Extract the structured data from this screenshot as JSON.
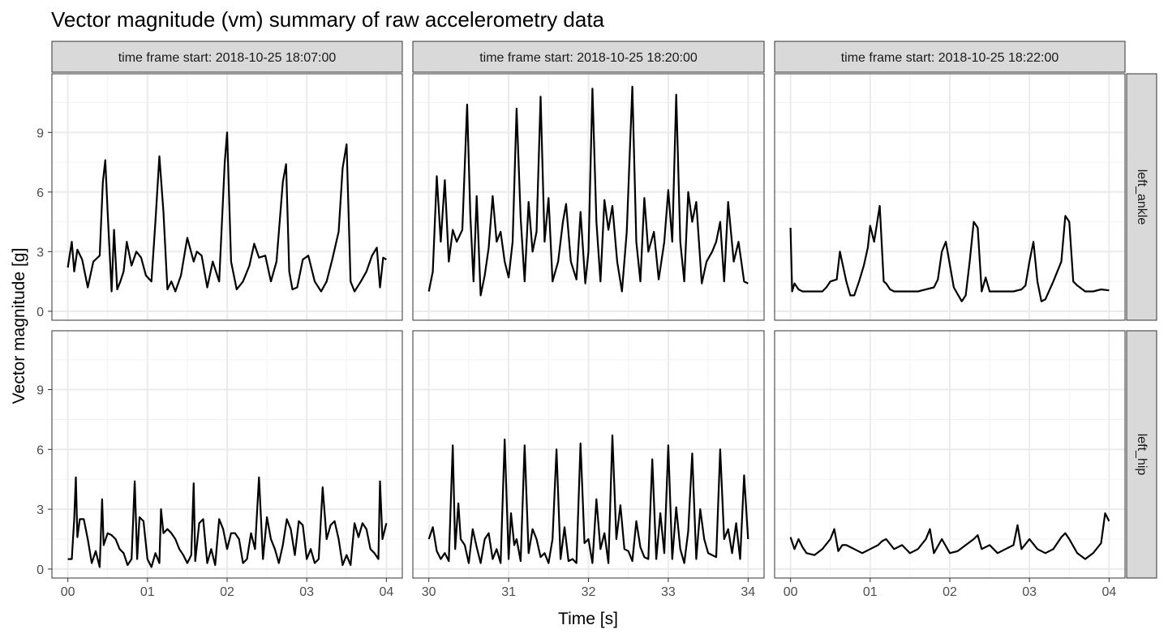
{
  "chart_data": {
    "type": "line",
    "title": "Vector magnitude (vm) summary of raw accelerometry data",
    "xlabel": "Time [s]",
    "ylabel": "Vector magnitude [g]",
    "ylim": [
      -0.45,
      11.95
    ],
    "y_ticks": [
      "0",
      "3",
      "6",
      "9"
    ],
    "y_tick_values": [
      0,
      3,
      6,
      9
    ],
    "grid": true,
    "line_color": "#000000",
    "strip_fill": "#d9d9d9",
    "columns": [
      {
        "strip": "time frame start: 2018-10-25 18:07:00",
        "xlim": [
          -0.2,
          4.2
        ],
        "x_ticks": [
          "00",
          "01",
          "02",
          "03",
          "04"
        ],
        "x_tick_values": [
          0,
          1,
          2,
          3,
          4
        ]
      },
      {
        "strip": "time frame start: 2018-10-25 18:20:00",
        "xlim": [
          29.8,
          34.2
        ],
        "x_ticks": [
          "30",
          "31",
          "32",
          "33",
          "34"
        ],
        "x_tick_values": [
          30,
          31,
          32,
          33,
          34
        ]
      },
      {
        "strip": "time frame start: 2018-10-25 18:22:00",
        "xlim": [
          -0.2,
          4.2
        ],
        "x_ticks": [
          "00",
          "01",
          "02",
          "03",
          "04"
        ],
        "x_tick_values": [
          0,
          1,
          2,
          3,
          4
        ]
      }
    ],
    "rows": [
      {
        "strip": "left_ankle"
      },
      {
        "strip": "left_hip"
      }
    ],
    "panels": [
      {
        "row": 0,
        "col": 0,
        "x": [
          0,
          0.05,
          0.08,
          0.12,
          0.18,
          0.25,
          0.32,
          0.4,
          0.44,
          0.47,
          0.5,
          0.55,
          0.58,
          0.62,
          0.66,
          0.7,
          0.74,
          0.8,
          0.86,
          0.92,
          0.98,
          1.05,
          1.1,
          1.15,
          1.2,
          1.25,
          1.3,
          1.35,
          1.42,
          1.5,
          1.58,
          1.62,
          1.68,
          1.75,
          1.82,
          1.9,
          1.97,
          2.0,
          2.05,
          2.12,
          2.2,
          2.28,
          2.34,
          2.4,
          2.48,
          2.55,
          2.62,
          2.7,
          2.74,
          2.78,
          2.82,
          2.88,
          2.95,
          3.02,
          3.1,
          3.18,
          3.25,
          3.32,
          3.4,
          3.45,
          3.5,
          3.55,
          3.6,
          3.68,
          3.75,
          3.82,
          3.88,
          3.92,
          3.96,
          4.0
        ],
        "y": [
          2.2,
          3.5,
          2.0,
          3.1,
          2.6,
          1.2,
          2.5,
          2.8,
          6.5,
          7.6,
          5.0,
          1.0,
          4.1,
          1.1,
          1.5,
          2.0,
          3.5,
          2.3,
          3.0,
          2.7,
          1.8,
          1.5,
          4.5,
          7.8,
          5.0,
          1.1,
          1.5,
          1.0,
          1.8,
          3.7,
          2.5,
          3.0,
          2.8,
          1.2,
          2.5,
          1.5,
          7.5,
          9.0,
          2.5,
          1.1,
          1.5,
          2.3,
          3.4,
          2.7,
          2.8,
          1.5,
          2.5,
          6.5,
          7.4,
          2.0,
          1.1,
          1.2,
          2.6,
          2.8,
          1.5,
          1.0,
          1.5,
          2.6,
          4.0,
          7.2,
          8.4,
          1.5,
          1.0,
          1.5,
          2.0,
          2.8,
          3.2,
          1.2,
          2.7,
          2.6
        ]
      },
      {
        "row": 0,
        "col": 1,
        "x": [
          30.0,
          30.05,
          30.1,
          30.15,
          30.2,
          30.25,
          30.3,
          30.35,
          30.42,
          30.48,
          30.52,
          30.56,
          30.6,
          30.65,
          30.7,
          30.75,
          30.8,
          30.85,
          30.9,
          30.95,
          31.0,
          31.05,
          31.1,
          31.15,
          31.2,
          31.25,
          31.3,
          31.35,
          31.4,
          31.45,
          31.5,
          31.55,
          31.62,
          31.68,
          31.72,
          31.78,
          31.85,
          31.9,
          31.96,
          32.0,
          32.05,
          32.1,
          32.15,
          32.2,
          32.25,
          32.3,
          32.36,
          32.42,
          32.48,
          32.55,
          32.6,
          32.65,
          32.7,
          32.75,
          32.82,
          32.88,
          32.95,
          33.0,
          33.05,
          33.1,
          33.15,
          33.2,
          33.25,
          33.3,
          33.35,
          33.42,
          33.48,
          33.55,
          33.6,
          33.65,
          33.7,
          33.75,
          33.82,
          33.88,
          33.95,
          34.0
        ],
        "y": [
          1.0,
          2.0,
          6.8,
          3.5,
          6.6,
          2.5,
          4.1,
          3.5,
          4.1,
          10.4,
          4.8,
          1.5,
          5.8,
          0.8,
          1.8,
          3.2,
          5.8,
          3.5,
          4.0,
          2.5,
          1.7,
          3.5,
          10.2,
          4.7,
          1.5,
          5.5,
          3.0,
          4.0,
          10.8,
          3.5,
          5.7,
          1.5,
          2.5,
          4.5,
          5.4,
          2.5,
          1.6,
          5.0,
          1.4,
          3.0,
          11.2,
          4.5,
          1.5,
          5.6,
          4.1,
          5.3,
          2.5,
          1.0,
          4.0,
          11.3,
          3.5,
          1.5,
          5.7,
          3.0,
          4.0,
          1.6,
          3.5,
          6.1,
          3.5,
          10.9,
          3.5,
          1.5,
          6.0,
          4.5,
          5.5,
          1.4,
          2.5,
          3.0,
          3.5,
          4.5,
          1.5,
          5.5,
          2.5,
          3.5,
          1.5,
          1.4
        ]
      },
      {
        "row": 0,
        "col": 2,
        "x": [
          0.0,
          0.02,
          0.05,
          0.1,
          0.15,
          0.2,
          0.3,
          0.4,
          0.45,
          0.5,
          0.58,
          0.62,
          0.7,
          0.75,
          0.8,
          0.86,
          0.92,
          0.97,
          1.0,
          1.05,
          1.12,
          1.17,
          1.2,
          1.25,
          1.3,
          1.35,
          1.4,
          1.5,
          1.6,
          1.7,
          1.8,
          1.85,
          1.9,
          1.95,
          2.05,
          2.15,
          2.2,
          2.25,
          2.3,
          2.35,
          2.4,
          2.45,
          2.5,
          2.6,
          2.7,
          2.8,
          2.9,
          2.95,
          3.0,
          3.05,
          3.1,
          3.15,
          3.2,
          3.3,
          3.4,
          3.45,
          3.5,
          3.55,
          3.6,
          3.7,
          3.8,
          3.9,
          4.0
        ],
        "y": [
          4.2,
          1.0,
          1.4,
          1.1,
          1.0,
          1.0,
          1.0,
          1.0,
          1.2,
          1.5,
          1.6,
          3.0,
          1.5,
          0.8,
          0.8,
          1.5,
          2.3,
          3.2,
          4.3,
          3.5,
          5.3,
          1.5,
          1.4,
          1.1,
          1.0,
          1.0,
          1.0,
          1.0,
          1.0,
          1.1,
          1.2,
          1.6,
          3.0,
          3.5,
          1.2,
          0.5,
          0.8,
          2.5,
          4.5,
          4.2,
          1.0,
          1.7,
          1.0,
          1.0,
          1.0,
          1.0,
          1.1,
          1.3,
          2.5,
          3.5,
          1.5,
          0.5,
          0.6,
          1.5,
          2.5,
          4.8,
          4.5,
          1.5,
          1.3,
          1.0,
          1.0,
          1.1,
          1.05
        ]
      },
      {
        "row": 1,
        "col": 0,
        "x": [
          0.0,
          0.05,
          0.08,
          0.1,
          0.12,
          0.15,
          0.2,
          0.25,
          0.3,
          0.35,
          0.4,
          0.43,
          0.45,
          0.5,
          0.55,
          0.6,
          0.65,
          0.7,
          0.75,
          0.8,
          0.84,
          0.87,
          0.9,
          0.95,
          1.0,
          1.05,
          1.1,
          1.15,
          1.17,
          1.2,
          1.25,
          1.3,
          1.35,
          1.4,
          1.45,
          1.5,
          1.55,
          1.58,
          1.6,
          1.65,
          1.7,
          1.75,
          1.8,
          1.85,
          1.9,
          1.95,
          2.0,
          2.05,
          2.1,
          2.15,
          2.2,
          2.25,
          2.3,
          2.35,
          2.4,
          2.45,
          2.5,
          2.55,
          2.6,
          2.65,
          2.7,
          2.75,
          2.8,
          2.85,
          2.9,
          2.95,
          3.0,
          3.05,
          3.1,
          3.15,
          3.2,
          3.25,
          3.3,
          3.35,
          3.4,
          3.45,
          3.5,
          3.55,
          3.6,
          3.65,
          3.7,
          3.75,
          3.8,
          3.85,
          3.9,
          3.92,
          3.95,
          4.0
        ],
        "y": [
          0.5,
          0.5,
          2.5,
          4.6,
          1.6,
          2.5,
          2.5,
          1.5,
          0.3,
          0.9,
          0.1,
          3.5,
          1.2,
          1.8,
          1.7,
          1.5,
          1.0,
          0.8,
          0.2,
          0.5,
          4.4,
          0.5,
          2.6,
          2.4,
          0.5,
          0.1,
          0.8,
          0.3,
          3.0,
          1.8,
          2.0,
          1.8,
          1.5,
          1.0,
          0.7,
          0.3,
          0.7,
          4.3,
          0.4,
          2.3,
          2.5,
          0.3,
          1.0,
          0.2,
          2.5,
          2.0,
          1.0,
          1.8,
          1.8,
          1.5,
          0.3,
          0.5,
          1.8,
          1.0,
          4.6,
          0.5,
          2.6,
          1.5,
          1.0,
          0.3,
          1.2,
          2.5,
          2.0,
          0.7,
          2.4,
          2.2,
          0.5,
          1.0,
          0.3,
          0.5,
          4.1,
          1.5,
          2.2,
          2.4,
          1.5,
          0.2,
          0.7,
          0.2,
          2.3,
          1.6,
          2.3,
          2.0,
          1.0,
          0.8,
          0.5,
          4.4,
          1.5,
          2.3
        ]
      },
      {
        "row": 1,
        "col": 1,
        "x": [
          30.0,
          30.05,
          30.1,
          30.15,
          30.2,
          30.25,
          30.3,
          30.33,
          30.37,
          30.4,
          30.45,
          30.5,
          30.55,
          30.6,
          30.65,
          30.7,
          30.75,
          30.8,
          30.85,
          30.9,
          30.95,
          31.0,
          31.03,
          31.07,
          31.1,
          31.15,
          31.2,
          31.25,
          31.3,
          31.35,
          31.4,
          31.45,
          31.5,
          31.55,
          31.6,
          31.65,
          31.7,
          31.75,
          31.8,
          31.85,
          31.9,
          31.95,
          32.0,
          32.05,
          32.1,
          32.15,
          32.2,
          32.25,
          32.3,
          32.35,
          32.4,
          32.45,
          32.5,
          32.55,
          32.6,
          32.65,
          32.7,
          32.75,
          32.8,
          32.85,
          32.9,
          32.95,
          33.0,
          33.05,
          33.1,
          33.15,
          33.2,
          33.25,
          33.3,
          33.35,
          33.4,
          33.45,
          33.5,
          33.55,
          33.6,
          33.65,
          33.7,
          33.75,
          33.8,
          33.85,
          33.9,
          33.95,
          34.0
        ],
        "y": [
          1.5,
          2.1,
          0.9,
          0.5,
          0.8,
          0.4,
          6.2,
          1.0,
          3.3,
          1.5,
          1.2,
          0.3,
          2.0,
          1.1,
          0.3,
          1.5,
          1.8,
          0.5,
          1.0,
          0.3,
          6.5,
          0.5,
          2.8,
          1.2,
          1.5,
          0.4,
          6.2,
          0.8,
          2.0,
          1.5,
          0.6,
          0.8,
          0.3,
          1.5,
          6.0,
          0.5,
          2.1,
          0.4,
          0.5,
          0.3,
          6.3,
          1.3,
          1.5,
          0.3,
          3.5,
          1.0,
          1.8,
          0.3,
          6.7,
          1.5,
          3.2,
          1.0,
          0.9,
          0.4,
          2.4,
          1.1,
          0.6,
          0.5,
          5.5,
          0.5,
          2.8,
          0.8,
          6.2,
          0.5,
          3.1,
          1.0,
          0.3,
          1.9,
          5.8,
          0.5,
          3.0,
          1.5,
          0.8,
          0.7,
          0.6,
          6.0,
          1.5,
          2.0,
          0.8,
          2.3,
          0.5,
          4.7,
          1.5
        ]
      },
      {
        "row": 1,
        "col": 2,
        "x": [
          0.0,
          0.05,
          0.1,
          0.15,
          0.2,
          0.3,
          0.4,
          0.5,
          0.55,
          0.6,
          0.65,
          0.7,
          0.8,
          0.9,
          1.0,
          1.1,
          1.15,
          1.2,
          1.3,
          1.4,
          1.5,
          1.6,
          1.7,
          1.75,
          1.8,
          1.9,
          2.0,
          2.1,
          2.2,
          2.3,
          2.35,
          2.4,
          2.5,
          2.6,
          2.7,
          2.8,
          2.85,
          2.9,
          3.0,
          3.1,
          3.2,
          3.3,
          3.4,
          3.45,
          3.5,
          3.6,
          3.7,
          3.8,
          3.9,
          3.95,
          4.0
        ],
        "y": [
          1.6,
          1.0,
          1.5,
          1.1,
          0.8,
          0.7,
          1.0,
          1.5,
          2.0,
          0.9,
          1.2,
          1.2,
          1.0,
          0.8,
          1.0,
          1.2,
          1.4,
          1.5,
          1.0,
          1.2,
          0.8,
          1.0,
          1.5,
          2.0,
          0.8,
          1.5,
          0.8,
          0.9,
          1.2,
          1.5,
          1.7,
          1.0,
          1.2,
          0.8,
          1.0,
          1.2,
          2.2,
          1.0,
          1.5,
          1.0,
          0.8,
          1.0,
          1.6,
          1.8,
          1.5,
          0.8,
          0.5,
          0.8,
          1.3,
          2.8,
          2.4
        ]
      }
    ]
  }
}
